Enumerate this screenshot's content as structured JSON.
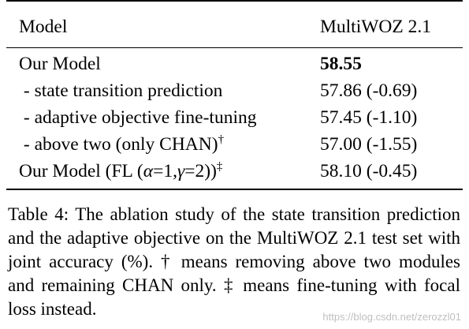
{
  "table": {
    "header": {
      "model": "Model",
      "dataset": "MultiWOZ 2.1"
    },
    "rows": [
      {
        "model": "Our Model",
        "score": "58.55",
        "bold": true
      },
      {
        "model": " - state transition prediction",
        "score": "57.86 (-0.69)"
      },
      {
        "model": " - adaptive objective fine-tuning",
        "score": "57.45 (-1.10)"
      },
      {
        "model": " - above two (only CHAN)",
        "marker": "†",
        "score": "57.00 (-1.55)"
      },
      {
        "model_prefix": "Our Model (FL (",
        "alpha": "α",
        "alpha_val": "=1,",
        "gamma": "γ",
        "gamma_val": "=2))",
        "marker": "‡",
        "score": "58.10 (-0.45)"
      }
    ]
  },
  "caption": "Table 4: The ablation study of the state transition prediction and the adaptive objective on the MultiWOZ 2.1 test set with joint accuracy (%). † means removing above two modules and remaining CHAN only. ‡ means fine-tuning with focal loss instead.",
  "watermark": "https://blog.csdn.net/zerozzl01"
}
